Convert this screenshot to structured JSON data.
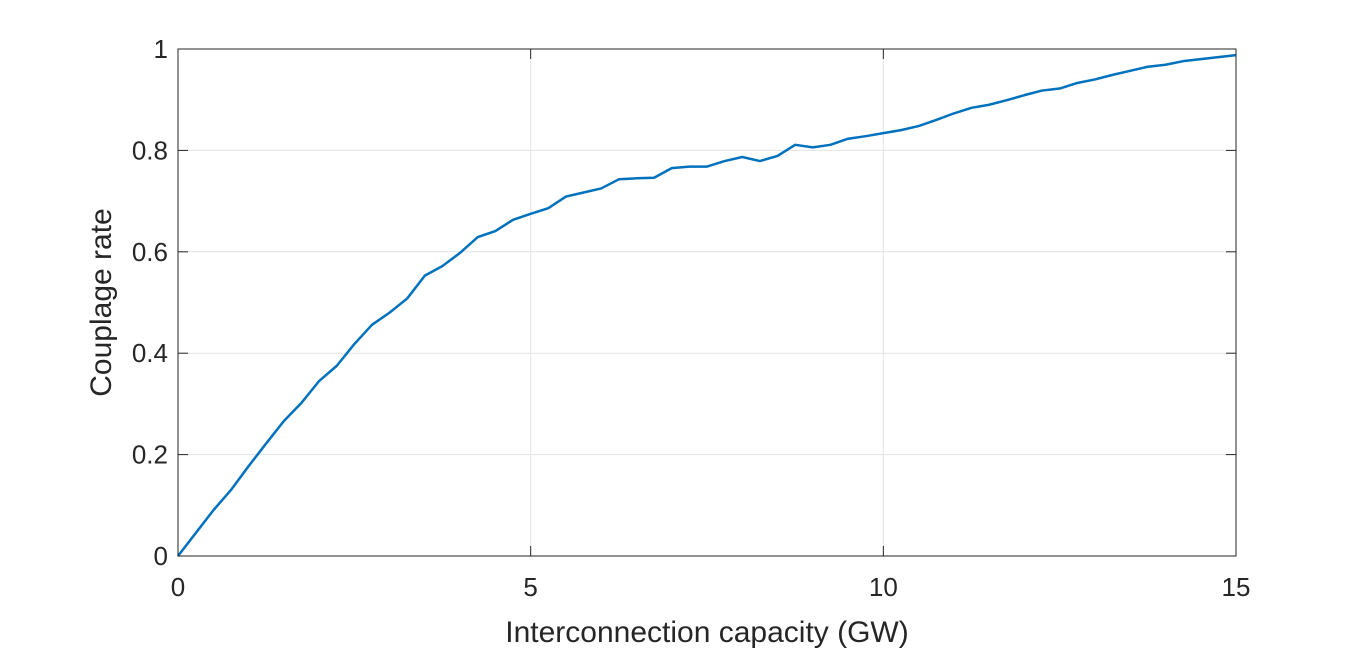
{
  "chart_data": {
    "type": "line",
    "title": "",
    "xlabel": "Interconnection capacity (GW)",
    "ylabel": "Couplage rate",
    "xlim": [
      0,
      15
    ],
    "ylim": [
      0,
      1
    ],
    "xticks": [
      0,
      5,
      10,
      15
    ],
    "yticks": [
      0,
      0.2,
      0.4,
      0.6,
      0.8,
      1
    ],
    "xtick_labels": [
      "0",
      "5",
      "10",
      "15"
    ],
    "ytick_labels": [
      "0",
      "0.2",
      "0.4",
      "0.6",
      "0.8",
      "1"
    ],
    "grid": true,
    "box": true,
    "legend": "none",
    "series": [
      {
        "color": "#0072bd",
        "x": [
          0,
          0.25,
          0.5,
          0.75,
          1.0,
          1.25,
          1.5,
          1.75,
          2.0,
          2.25,
          2.5,
          2.75,
          3.0,
          3.25,
          3.5,
          3.75,
          4.0,
          4.25,
          4.5,
          4.75,
          5.0,
          5.25,
          5.5,
          5.75,
          6.0,
          6.25,
          6.5,
          6.75,
          7.0,
          7.25,
          7.5,
          7.75,
          8.0,
          8.25,
          8.5,
          8.75,
          9.0,
          9.25,
          9.5,
          9.75,
          10.0,
          10.25,
          10.5,
          10.75,
          11.0,
          11.25,
          11.5,
          11.75,
          12.0,
          12.25,
          12.5,
          12.75,
          13.0,
          13.25,
          13.5,
          13.75,
          14.0,
          14.25,
          14.5,
          14.75,
          15.0
        ],
        "y": [
          0,
          0.045,
          0.09,
          0.13,
          0.177,
          0.222,
          0.266,
          0.302,
          0.345,
          0.375,
          0.418,
          0.456,
          0.48,
          0.508,
          0.553,
          0.572,
          0.598,
          0.629,
          0.641,
          0.663,
          0.675,
          0.686,
          0.709,
          0.717,
          0.725,
          0.743,
          0.745,
          0.746,
          0.765,
          0.768,
          0.768,
          0.779,
          0.787,
          0.779,
          0.789,
          0.811,
          0.806,
          0.811,
          0.823,
          0.828,
          0.834,
          0.84,
          0.848,
          0.86,
          0.873,
          0.884,
          0.89,
          0.899,
          0.909,
          0.918,
          0.922,
          0.933,
          0.94,
          0.949,
          0.957,
          0.965,
          0.969,
          0.976,
          0.98,
          0.984,
          0.988
        ]
      }
    ]
  }
}
